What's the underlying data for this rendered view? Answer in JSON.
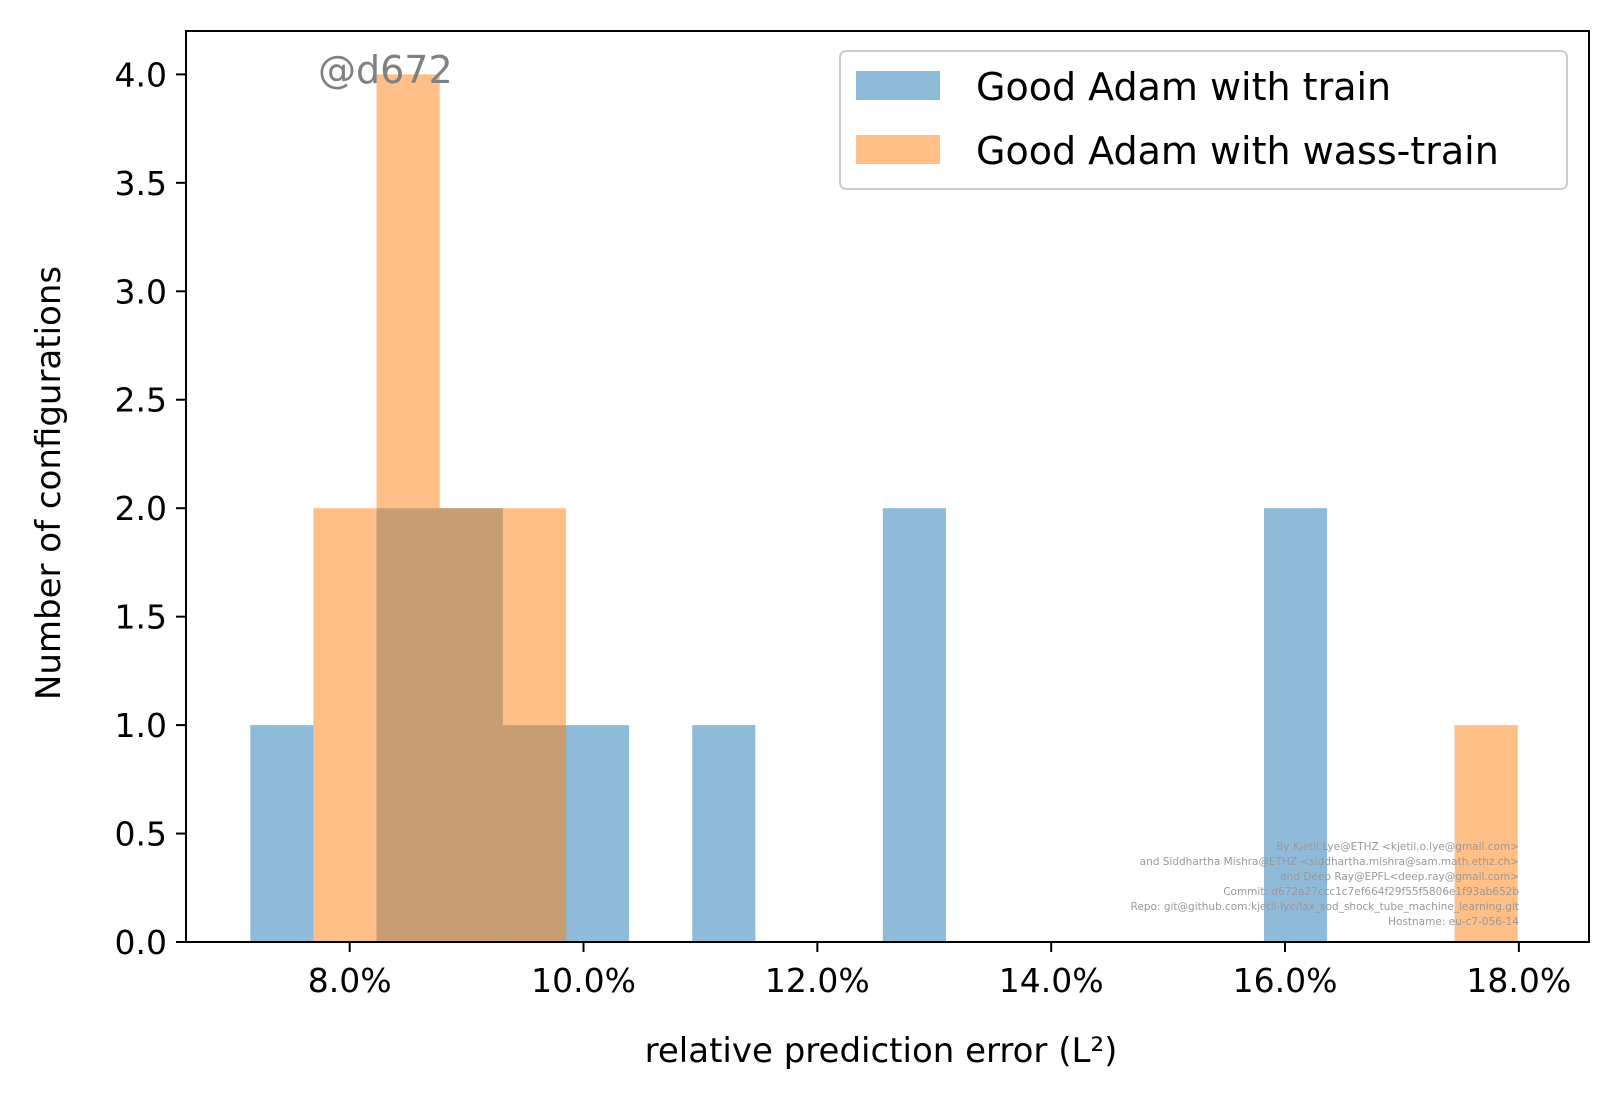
{
  "chart_data": {
    "type": "bar",
    "xlabel": "relative prediction error",
    "xlabel_math": "(L²)",
    "ylabel": "Number of configurations",
    "x_unit": "percent",
    "xlim": [
      6.6,
      18.6
    ],
    "ylim": [
      0,
      4.2
    ],
    "xticks": [
      8.0,
      10.0,
      12.0,
      14.0,
      16.0,
      18.0
    ],
    "xtick_labels": [
      "8.0%",
      "10.0%",
      "12.0%",
      "14.0%",
      "16.0%",
      "18.0%"
    ],
    "yticks": [
      0.0,
      0.5,
      1.0,
      1.5,
      2.0,
      2.5,
      3.0,
      3.5,
      4.0
    ],
    "ytick_labels": [
      "0.0",
      "0.5",
      "1.0",
      "1.5",
      "2.0",
      "2.5",
      "3.0",
      "3.5",
      "4.0"
    ],
    "grid": false,
    "legend_position": "top-right",
    "series": [
      {
        "name": "Good Adam with train",
        "color": "#1f77b4",
        "opacity": 0.5,
        "bins": [
          {
            "x0": 7.15,
            "x1": 7.69,
            "count": 1
          },
          {
            "x0": 8.23,
            "x1": 8.77,
            "count": 2
          },
          {
            "x0": 8.77,
            "x1": 9.31,
            "count": 2
          },
          {
            "x0": 9.31,
            "x1": 9.85,
            "count": 1
          },
          {
            "x0": 9.85,
            "x1": 10.39,
            "count": 1
          },
          {
            "x0": 10.93,
            "x1": 11.47,
            "count": 1
          },
          {
            "x0": 12.56,
            "x1": 13.1,
            "count": 2
          },
          {
            "x0": 15.82,
            "x1": 16.36,
            "count": 2
          }
        ]
      },
      {
        "name": "Good Adam with wass-train",
        "color": "#ff7f0e",
        "opacity": 0.5,
        "bins": [
          {
            "x0": 7.69,
            "x1": 8.23,
            "count": 2
          },
          {
            "x0": 8.23,
            "x1": 8.77,
            "count": 4
          },
          {
            "x0": 8.77,
            "x1": 9.31,
            "count": 2
          },
          {
            "x0": 9.31,
            "x1": 9.85,
            "count": 2
          },
          {
            "x0": 17.45,
            "x1": 17.99,
            "count": 1
          }
        ]
      }
    ]
  },
  "annotation_tag": "@d672",
  "credits": [
    "By Kjetil Lye@ETHZ <kjetil.o.lye@gmail.com>",
    "and Siddhartha Mishra@ETHZ <siddhartha.mishra@sam.math.ethz.ch>",
    "and Deep Ray@EPFL<deep.ray@gmail.com>",
    "Commit: d672a27ccc1c7ef664f29f55f5806e1f93ab652b",
    "Repo: git@github.com:kjetil-lye/lax_sod_shock_tube_machine_learning.git",
    "Hostname: eu-c7-056-14"
  ]
}
